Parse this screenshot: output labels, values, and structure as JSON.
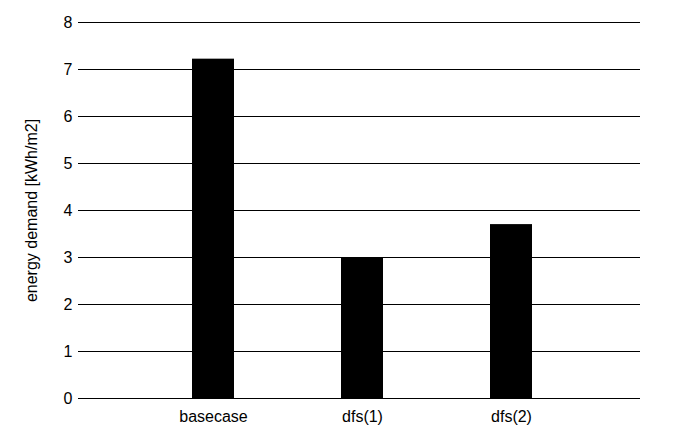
{
  "chart_data": {
    "type": "bar",
    "y_label": "energy demand [kWh/m2]",
    "categories": [
      "basecase",
      "dfs(1)",
      "dfs(2)"
    ],
    "values": [
      7.22,
      3.0,
      3.7
    ],
    "color": "#000000",
    "ylim": [
      0,
      8
    ],
    "yticks": [
      0,
      1,
      2,
      3,
      4,
      5,
      6,
      7,
      8
    ],
    "grid": true
  }
}
